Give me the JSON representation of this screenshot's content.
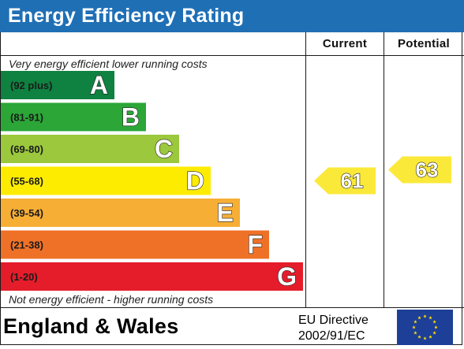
{
  "title": "Energy Efficiency Rating",
  "columns": {
    "current": "Current",
    "potential": "Potential"
  },
  "notes": {
    "top": "Very energy efficient   lower running costs",
    "bottom": "Not energy efficient - higher running costs"
  },
  "footer": {
    "region": "England & Wales",
    "directive_line1": "EU Directive",
    "directive_line2": "2002/91/EC"
  },
  "colors": {
    "title_bar": "#1f6fb5",
    "flag_blue": "#1d3f97",
    "flag_stars": "#ffde00",
    "rating_arrow": "#fbe93a"
  },
  "chart_data": {
    "type": "bar",
    "bands": [
      {
        "letter": "A",
        "range": "(92 plus)",
        "color": "#0f8140"
      },
      {
        "letter": "B",
        "range": "(81-91)",
        "color": "#2ba637"
      },
      {
        "letter": "C",
        "range": "(69-80)",
        "color": "#9bc83c"
      },
      {
        "letter": "D",
        "range": "(55-68)",
        "color": "#fdec00"
      },
      {
        "letter": "E",
        "range": "(39-54)",
        "color": "#f6ae35"
      },
      {
        "letter": "F",
        "range": "(21-38)",
        "color": "#ef7127"
      },
      {
        "letter": "G",
        "range": "(1-20)",
        "color": "#e51d2a"
      }
    ],
    "current": {
      "value": 61,
      "band": "D"
    },
    "potential": {
      "value": 63,
      "band": "D"
    }
  }
}
